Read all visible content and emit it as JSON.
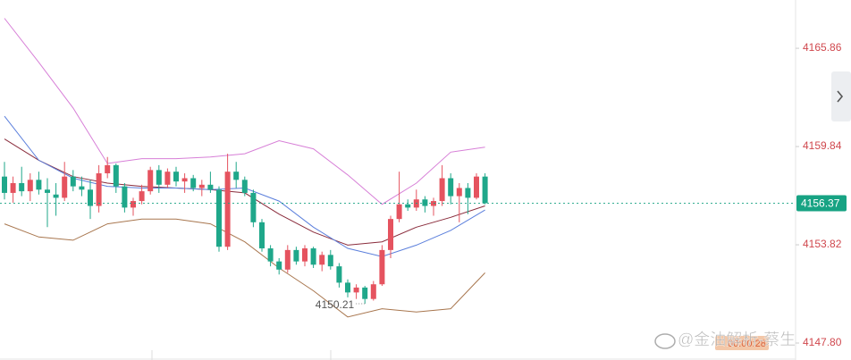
{
  "chart_data": {
    "type": "candlestick",
    "open": [
      4158.0,
      4157.0,
      4157.6,
      4157.1,
      4157.8,
      4157.2,
      4156.9,
      4156.7,
      4158.0,
      4157.4,
      4157.2,
      4156.2,
      4158.2,
      4158.7,
      4157.4,
      4156.1,
      4156.5,
      4157.1,
      4158.4,
      4157.5,
      4158.3,
      4157.7,
      4157.9,
      4157.3,
      4157.5,
      4157.2,
      4153.7,
      4158.3,
      4157.8,
      4157.0,
      4155.2,
      4153.6,
      4152.8,
      4152.3,
      4153.5,
      4152.8,
      4153.6,
      4152.6,
      4153.2,
      4152.5,
      4151.5,
      4150.9,
      4151.2,
      4150.5,
      4151.4,
      4153.5,
      4155.4,
      4156.3,
      4156.1,
      4156.6,
      4156.2,
      4156.5,
      4157.9,
      4156.8,
      4157.3,
      4156.7,
      4158.0
    ],
    "high": [
      4158.9,
      4158.0,
      4158.6,
      4158.2,
      4158.3,
      4157.9,
      4157.6,
      4158.9,
      4158.4,
      4158.0,
      4157.8,
      4158.7,
      4159.2,
      4158.8,
      4157.6,
      4156.7,
      4157.5,
      4158.6,
      4158.7,
      4158.5,
      4158.6,
      4158.2,
      4158.1,
      4157.8,
      4158.3,
      4157.4,
      4159.4,
      4158.9,
      4158.0,
      4157.2,
      4155.4,
      4153.8,
      4153.0,
      4153.8,
      4153.7,
      4153.8,
      4153.7,
      4153.4,
      4153.5,
      4152.7,
      4151.7,
      4151.4,
      4151.3,
      4151.6,
      4153.8,
      4155.6,
      4158.3,
      4156.6,
      4157.2,
      4156.8,
      4156.7,
      4158.7,
      4158.2,
      4157.6,
      4157.6,
      4158.2,
      4158.2
    ],
    "low": [
      4156.6,
      4156.4,
      4156.8,
      4156.5,
      4156.9,
      4154.9,
      4155.6,
      4156.5,
      4157.1,
      4156.8,
      4155.4,
      4155.8,
      4157.9,
      4157.0,
      4155.8,
      4155.6,
      4156.3,
      4156.9,
      4157.0,
      4157.3,
      4157.4,
      4157.0,
      4157.1,
      4156.8,
      4157.0,
      4153.4,
      4153.5,
      4157.3,
      4156.8,
      4154.9,
      4153.4,
      4152.5,
      4152.0,
      4152.1,
      4152.6,
      4152.5,
      4152.4,
      4152.2,
      4152.3,
      4151.2,
      4150.6,
      4150.5,
      4150.21,
      4150.4,
      4151.3,
      4153.0,
      4155.2,
      4155.9,
      4155.9,
      4155.8,
      4155.6,
      4156.2,
      4156.3,
      4155.2,
      4155.7,
      4156.6,
      4156.3
    ],
    "close": [
      4157.0,
      4157.6,
      4157.1,
      4157.8,
      4157.2,
      4157.0,
      4156.7,
      4158.0,
      4157.4,
      4157.2,
      4156.2,
      4158.2,
      4158.7,
      4157.4,
      4156.1,
      4156.5,
      4157.1,
      4158.4,
      4157.5,
      4158.3,
      4157.7,
      4157.9,
      4157.3,
      4157.5,
      4157.2,
      4153.7,
      4158.3,
      4157.8,
      4157.0,
      4155.2,
      4153.6,
      4152.8,
      4152.3,
      4153.5,
      4152.8,
      4153.6,
      4152.6,
      4153.2,
      4152.5,
      4151.5,
      4150.9,
      4151.2,
      4150.5,
      4151.4,
      4153.5,
      4155.4,
      4156.3,
      4156.1,
      4156.6,
      4156.2,
      4156.5,
      4157.9,
      4156.8,
      4157.3,
      4156.7,
      4158.0,
      4156.37
    ],
    "up_color": "#e5535f",
    "down_color": "#1fa78a",
    "lines": [
      {
        "x": [
          0,
          4,
          8,
          12,
          16,
          20,
          24,
          28,
          32,
          36,
          40,
          44,
          48,
          52,
          56
        ],
        "color": "#d77fd7",
        "values": [
          4167.7,
          4165.0,
          4162.2,
          4158.8,
          4159.1,
          4159.1,
          4159.2,
          4159.4,
          4160.2,
          4159.7,
          4158.1,
          4156.3,
          4157.6,
          4159.5,
          4159.8
        ]
      },
      {
        "x": [
          0,
          4,
          8,
          12,
          16,
          20,
          24,
          28,
          32,
          36,
          40,
          44,
          48,
          52,
          56
        ],
        "color": "#8a2c3c",
        "values": [
          4160.3,
          4159.0,
          4158.0,
          4157.6,
          4157.4,
          4157.3,
          4157.2,
          4157.0,
          4155.7,
          4154.6,
          4153.8,
          4154.0,
          4154.9,
          4155.5,
          4156.2
        ]
      },
      {
        "x": [
          0,
          4,
          8,
          12,
          16,
          20,
          24,
          28,
          32,
          36,
          40,
          44,
          48,
          52,
          56
        ],
        "color": "#5b7fdc",
        "values": [
          4161.7,
          4159.0,
          4157.9,
          4157.4,
          4157.3,
          4157.3,
          4157.2,
          4157.3,
          4156.5,
          4154.9,
          4153.6,
          4153.1,
          4153.8,
          4154.7,
          4155.95
        ]
      },
      {
        "x": [
          0,
          4,
          8,
          12,
          16,
          20,
          24,
          28,
          32,
          36,
          40,
          44,
          48,
          52,
          56
        ],
        "color": "#a8764e",
        "values": [
          4155.1,
          4154.3,
          4154.1,
          4155.1,
          4155.4,
          4155.4,
          4155.1,
          4154.0,
          4152.4,
          4151.0,
          4149.4,
          4149.9,
          4149.7,
          4149.9,
          4152.1
        ]
      }
    ],
    "ylim": [
      4146.76,
      4168.82
    ],
    "yticks": [
      {
        "value": 4147.8,
        "label": "4147.80"
      },
      4153.82,
      4159.84,
      4165.86
    ],
    "countdown": "00:00:28",
    "watermark": "@金油解析-蔡生"
  }
}
